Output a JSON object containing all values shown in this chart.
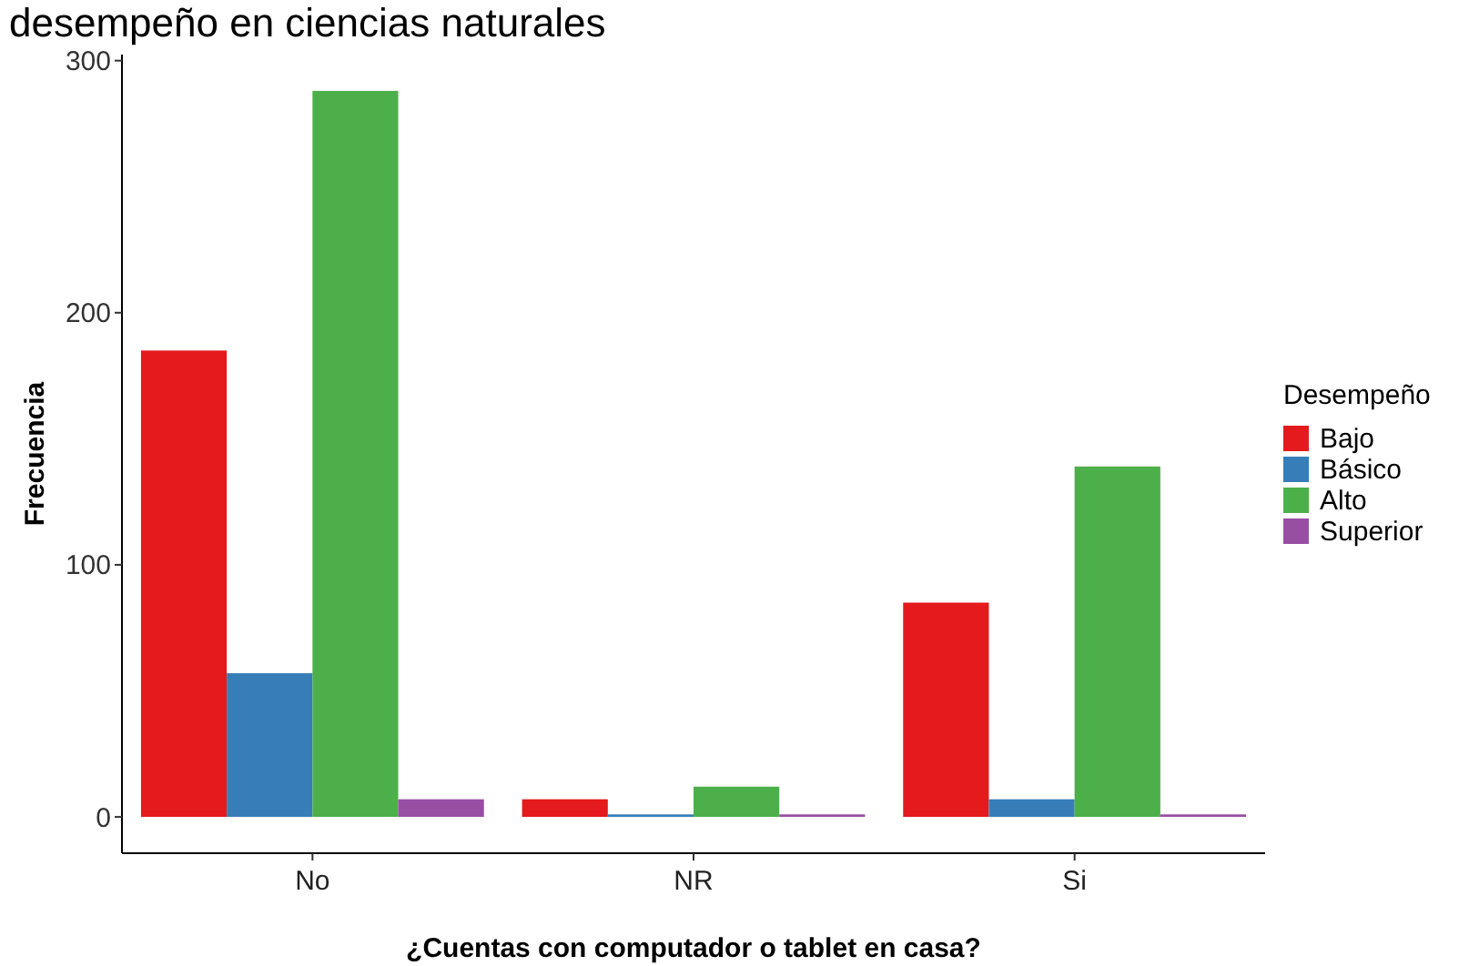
{
  "chart_data": {
    "type": "bar",
    "title": "desempeño en ciencias naturales",
    "xlabel": "¿Cuentas con computador o tablet en casa?",
    "ylabel": "Frecuencia",
    "categories": [
      "No",
      "NR",
      "Si"
    ],
    "legend_title": "Desempeño",
    "legend": "right",
    "grid": false,
    "ylim": [
      -14.4,
      302.4
    ],
    "yticks": [
      0,
      100,
      200,
      300
    ],
    "series": [
      {
        "name": "Bajo",
        "color": "#e41a1c",
        "values": [
          185,
          7,
          85
        ]
      },
      {
        "name": "Básico",
        "color": "#377eb8",
        "values": [
          57,
          1,
          7
        ]
      },
      {
        "name": "Alto",
        "color": "#4daf4a",
        "values": [
          288,
          12,
          139
        ]
      },
      {
        "name": "Superior",
        "color": "#984ea3",
        "values": [
          7,
          1,
          1
        ]
      }
    ]
  }
}
